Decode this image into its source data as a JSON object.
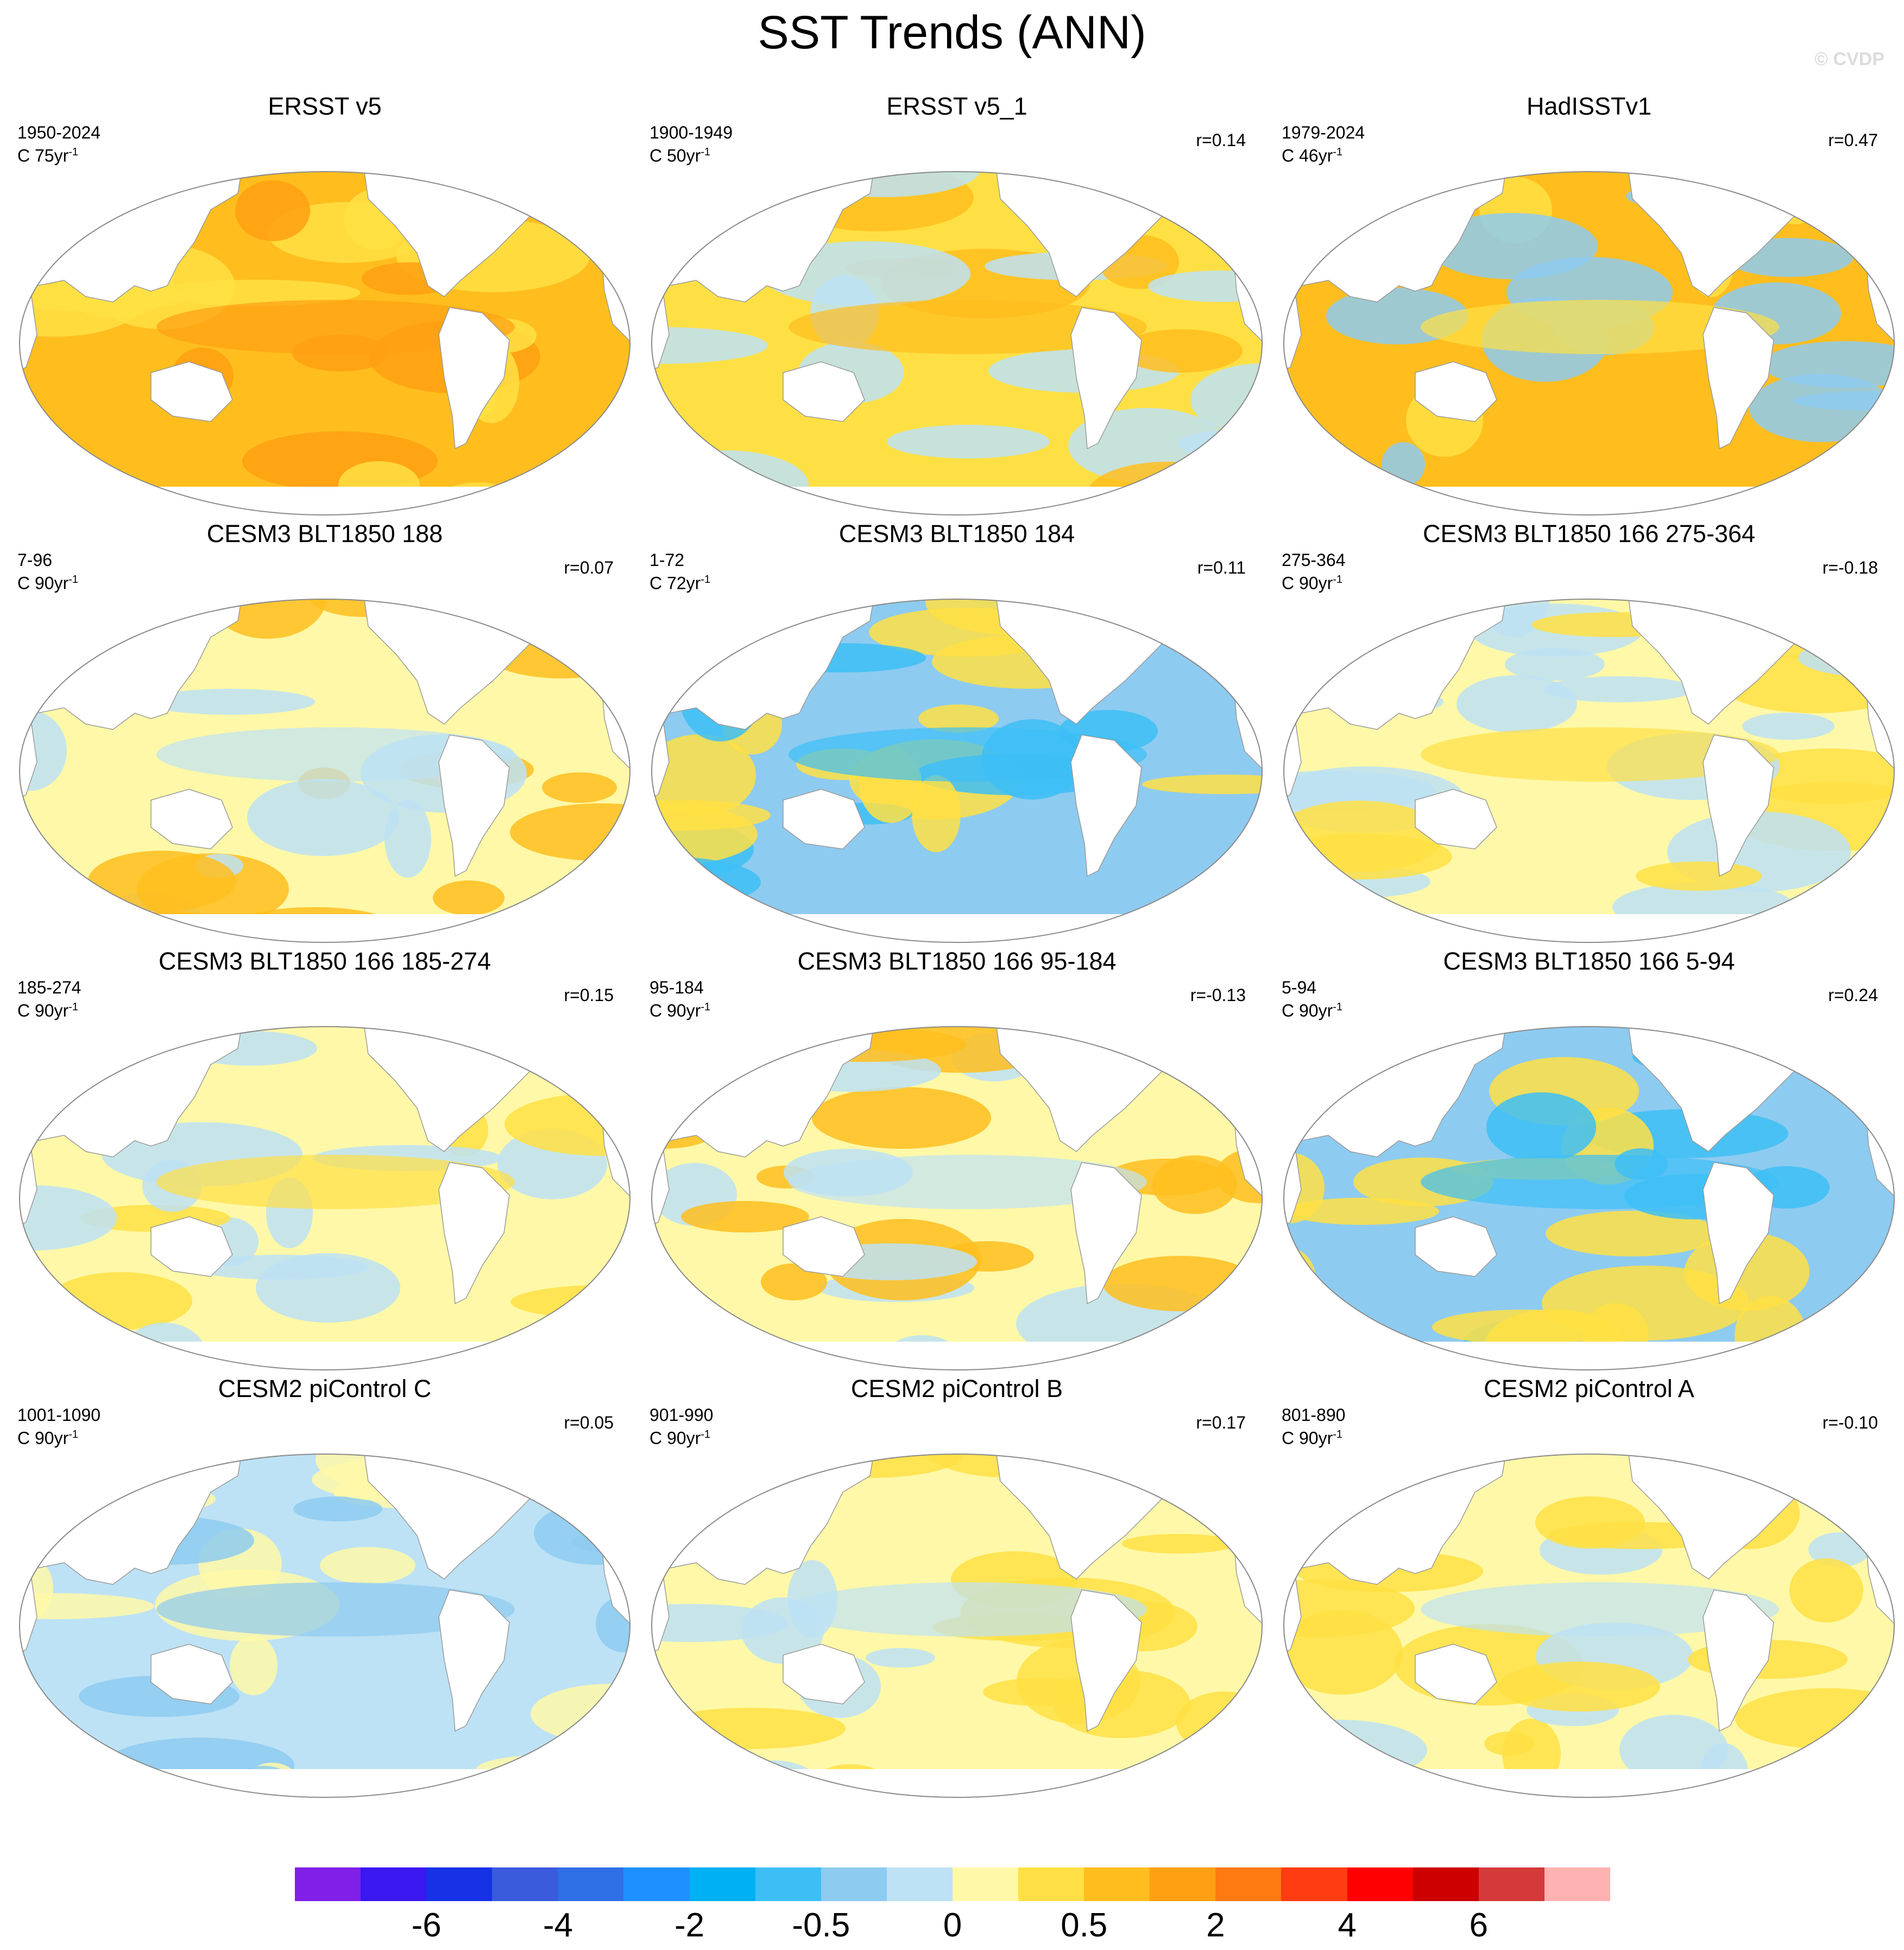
{
  "title": "SST Trends (ANN)",
  "watermark": "© CVDP",
  "panels": [
    {
      "title": "ERSST v5",
      "period": "1950-2024",
      "units": "C 75yr",
      "units_sup": "-1",
      "r": "",
      "pattern": "warm-strong"
    },
    {
      "title": "ERSST v5_1",
      "period": "1900-1949",
      "units": "C 50yr",
      "units_sup": "-1",
      "r": "r=0.14",
      "pattern": "warm-mixed"
    },
    {
      "title": "HadISSTv1",
      "period": "1979-2024",
      "units": "C 46yr",
      "units_sup": "-1",
      "r": "r=0.47",
      "pattern": "warm-lanina"
    },
    {
      "title": "CESM3 BLT1850 188",
      "period": "7-96",
      "units": "C 90yr",
      "units_sup": "-1",
      "r": "r=0.07",
      "pattern": "mixed-southern"
    },
    {
      "title": "CESM3 BLT1850 184",
      "period": "1-72",
      "units": "C 72yr",
      "units_sup": "-1",
      "r": "r=0.11",
      "pattern": "cool-strong"
    },
    {
      "title": "CESM3 BLT1850 166 275-364",
      "period": "275-364",
      "units": "C 90yr",
      "units_sup": "-1",
      "r": "r=-0.18",
      "pattern": "warm-weak"
    },
    {
      "title": "CESM3 BLT1850 166 185-274",
      "period": "185-274",
      "units": "C 90yr",
      "units_sup": "-1",
      "r": "r=0.15",
      "pattern": "warm-weak"
    },
    {
      "title": "CESM3 BLT1850 166 95-184",
      "period": "95-184",
      "units": "C 90yr",
      "units_sup": "-1",
      "r": "r=-0.13",
      "pattern": "mixed-southern"
    },
    {
      "title": "CESM3 BLT1850 166 5-94",
      "period": "5-94",
      "units": "C 90yr",
      "units_sup": "-1",
      "r": "r=0.24",
      "pattern": "cool-strong"
    },
    {
      "title": "CESM2 piControl C",
      "period": "1001-1090",
      "units": "C 90yr",
      "units_sup": "-1",
      "r": "r=0.05",
      "pattern": "cool-weak"
    },
    {
      "title": "CESM2 piControl B",
      "period": "901-990",
      "units": "C 90yr",
      "units_sup": "-1",
      "r": "r=0.17",
      "pattern": "mixed-weak"
    },
    {
      "title": "CESM2 piControl A",
      "period": "801-890",
      "units": "C 90yr",
      "units_sup": "-1",
      "r": "r=-0.10",
      "pattern": "mixed-weak"
    }
  ],
  "colorbar": {
    "colors": [
      "#7f1fe8",
      "#3b17f0",
      "#1631e6",
      "#3a5bdc",
      "#2e6fe6",
      "#1e90ff",
      "#00b0f4",
      "#3dbff6",
      "#8ecbf0",
      "#bde2f5",
      "#fff8a8",
      "#ffe044",
      "#ffbe1e",
      "#ffa012",
      "#ff7a10",
      "#ff3c12",
      "#ff0000",
      "#cc0000",
      "#d53a3a",
      "#ffb2b2"
    ],
    "labels": [
      "-6",
      "-4",
      "-2",
      "-0.5",
      "0",
      "0.5",
      "2",
      "4",
      "6"
    ]
  },
  "palette": {
    "ocean_pale_yellow": "#fff8a8",
    "ocean_yellow": "#ffe044",
    "ocean_orange": "#ffbe1e",
    "ocean_deep_orange": "#ffa012",
    "ocean_light_blue": "#bde2f5",
    "ocean_blue": "#8ecbf0",
    "ocean_mid_blue": "#3dbff6",
    "ocean_dark_blue": "#1e90ff",
    "land": "#ffffff",
    "outline": "#9a9a9a"
  }
}
